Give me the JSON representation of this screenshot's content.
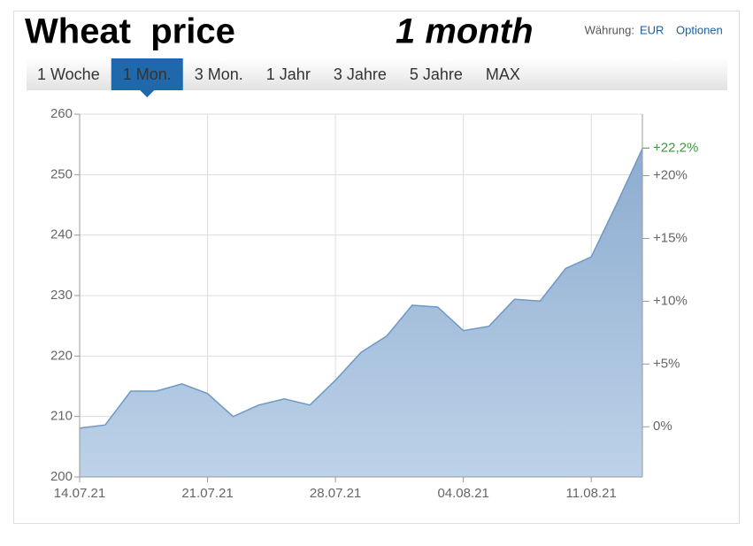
{
  "header": {
    "title": "Wheat  price",
    "subtitle": "1 month",
    "currency_label": "Währung:",
    "currency": "EUR",
    "options": "Optionen"
  },
  "tabs": {
    "items": [
      "1 Woche",
      "1 Mon.",
      "3 Mon.",
      "1 Jahr",
      "3 Jahre",
      "5 Jahre",
      "MAX"
    ],
    "selected": 1
  },
  "chart_data": {
    "type": "area",
    "categories": [
      "14.07.21",
      null,
      null,
      null,
      null,
      "21.07.21",
      null,
      null,
      null,
      null,
      "28.07.21",
      null,
      null,
      null,
      null,
      "04.08.21",
      null,
      null,
      null,
      null,
      "11.08.21",
      null,
      null
    ],
    "series": [
      {
        "color": "#6f98c6",
        "values": [
          208.1,
          208.6,
          214.2,
          214.2,
          215.4,
          213.8,
          210.0,
          211.9,
          212.9,
          211.9,
          216.0,
          220.6,
          223.3,
          228.4,
          228.1,
          224.2,
          224.9,
          229.4,
          229.1,
          234.5,
          236.4,
          245.2,
          254.3
        ]
      }
    ],
    "ylim": [
      200,
      260
    ],
    "yticks": [
      200,
      210,
      220,
      230,
      240,
      250,
      260
    ],
    "y2lim": [
      -4,
      24.9
    ],
    "y2ticks": [
      {
        "value": 0,
        "label": "0%"
      },
      {
        "value": 5,
        "label": "+5%"
      },
      {
        "value": 10,
        "label": "+10%"
      },
      {
        "value": 15,
        "label": "+15%"
      },
      {
        "value": 20,
        "label": "+20%"
      }
    ],
    "annotation": {
      "text": "+22,2%",
      "value": 22.2,
      "color": "#3a9a3a"
    },
    "grid": true
  }
}
